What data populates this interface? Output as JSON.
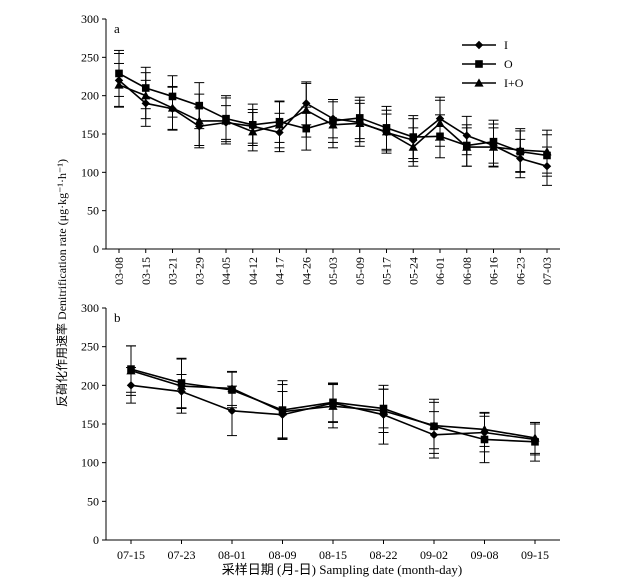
{
  "y_axis_label": "反硝化作用速率 Denitrification rate (μg·kg⁻¹·h⁻¹)",
  "x_axis_label": "采样日期 (月-日) Sampling date (month-day)",
  "legend": {
    "entries": [
      {
        "name": "I",
        "marker": "diamond"
      },
      {
        "name": "O",
        "marker": "square"
      },
      {
        "name": "I+O",
        "marker": "triangle"
      }
    ],
    "placement": "top-right"
  },
  "chart_data": [
    {
      "type": "line",
      "panel_label": "a",
      "ylim": [
        0,
        300
      ],
      "yticks": [
        0,
        50,
        100,
        150,
        200,
        250,
        300
      ],
      "categories": [
        "03-08",
        "03-15",
        "03-21",
        "03-29",
        "04-05",
        "04-12",
        "04-17",
        "04-26",
        "05-03",
        "05-09",
        "05-17",
        "05-24",
        "06-01",
        "06-08",
        "06-16",
        "06-23",
        "07-03"
      ],
      "series": [
        {
          "name": "I",
          "marker": "diamond",
          "values": [
            220,
            190,
            183,
            160,
            165,
            160,
            152,
            190,
            170,
            165,
            152,
            142,
            170,
            148,
            135,
            118,
            108
          ],
          "errors": [
            35,
            30,
            28,
            25,
            22,
            22,
            25,
            28,
            25,
            25,
            24,
            28,
            28,
            25,
            28,
            25,
            25
          ]
        },
        {
          "name": "O",
          "marker": "square",
          "values": [
            229,
            210,
            199,
            187,
            170,
            162,
            166,
            157,
            167,
            171,
            158,
            146,
            147,
            135,
            140,
            127,
            122
          ],
          "errors": [
            30,
            27,
            27,
            30,
            30,
            27,
            27,
            28,
            28,
            27,
            28,
            28,
            28,
            27,
            28,
            27,
            27
          ]
        },
        {
          "name": "I+O",
          "marker": "triangle",
          "values": [
            214,
            200,
            184,
            167,
            167,
            153,
            162,
            181,
            162,
            164,
            153,
            133,
            164,
            133,
            133,
            129,
            127
          ],
          "errors": [
            28,
            30,
            28,
            35,
            30,
            25,
            30,
            35,
            30,
            30,
            28,
            25,
            30,
            25,
            25,
            28,
            28
          ]
        }
      ]
    },
    {
      "type": "line",
      "panel_label": "b",
      "ylim": [
        0,
        300
      ],
      "yticks": [
        0,
        50,
        100,
        150,
        200,
        250,
        300
      ],
      "categories": [
        "07-15",
        "07-23",
        "08-01",
        "08-09",
        "08-15",
        "08-22",
        "09-02",
        "09-08",
        "09-15"
      ],
      "series": [
        {
          "name": "I",
          "marker": "diamond",
          "values": [
            200,
            192,
            167,
            162,
            177,
            162,
            136,
            139,
            130
          ],
          "errors": [
            23,
            22,
            32,
            30,
            25,
            38,
            30,
            25,
            20
          ]
        },
        {
          "name": "O",
          "marker": "square",
          "values": [
            221,
            203,
            194,
            168,
            178,
            170,
            147,
            130,
            127
          ],
          "errors": [
            30,
            32,
            23,
            38,
            25,
            25,
            35,
            30,
            25
          ]
        },
        {
          "name": "I+O",
          "marker": "triangle",
          "values": [
            219,
            199,
            196,
            166,
            173,
            167,
            148,
            143,
            132
          ],
          "errors": [
            32,
            35,
            22,
            35,
            28,
            28,
            30,
            22,
            20
          ]
        }
      ]
    }
  ]
}
